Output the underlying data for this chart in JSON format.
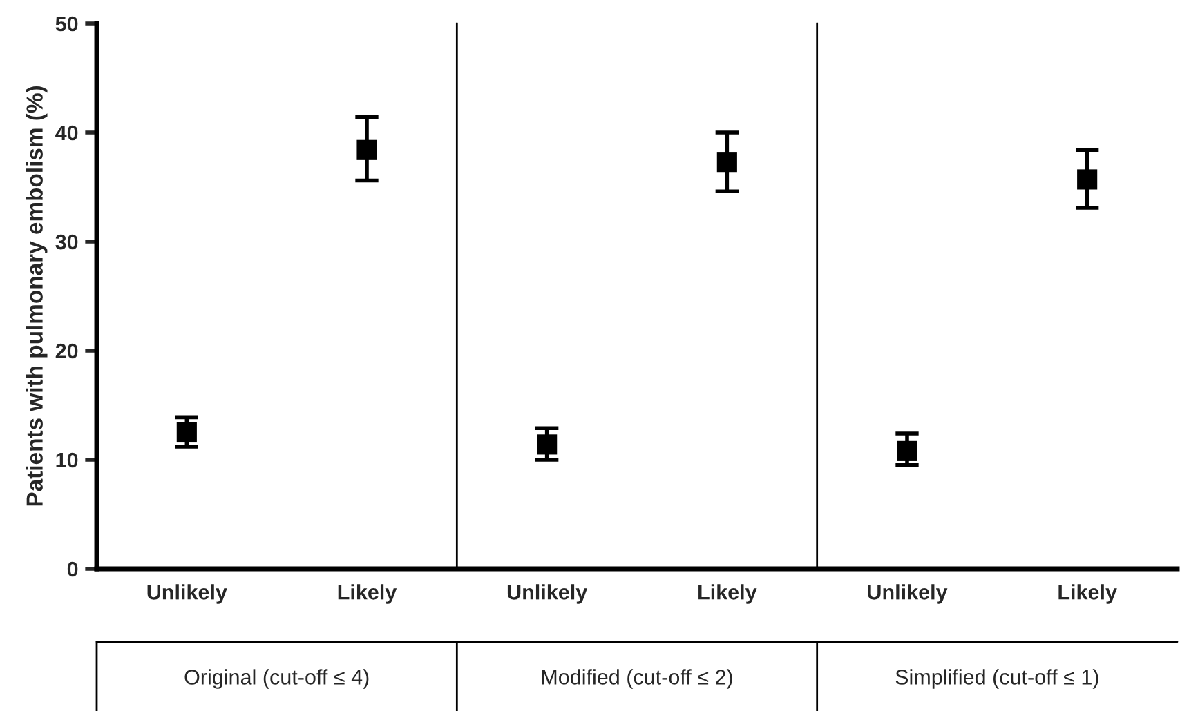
{
  "chart_data": {
    "type": "scatter",
    "ylabel": "Patients with pulmonary embolism (%)",
    "categories": [
      "Unlikely",
      "Likely",
      "Unlikely",
      "Likely",
      "Unlikely",
      "Likely"
    ],
    "series": [
      {
        "color": "#000000",
        "values": [
          12.5,
          38.4,
          11.4,
          37.3,
          10.8,
          35.7
        ],
        "errors": [
          [
            11.2,
            13.9
          ],
          [
            35.6,
            41.4
          ],
          [
            10.0,
            12.9
          ],
          [
            34.6,
            40.0
          ],
          [
            9.5,
            12.4
          ],
          [
            33.1,
            38.4
          ]
        ]
      }
    ],
    "marker": "square",
    "ylim": [
      0,
      50
    ],
    "yticks": [
      0,
      10,
      20,
      30,
      40,
      50
    ],
    "grid": false,
    "annotations": [
      "Original (cut-off ≤ 4)",
      "Modified (cut-off ≤ 2)",
      "Simplified (cut-off ≤ 1)"
    ]
  }
}
